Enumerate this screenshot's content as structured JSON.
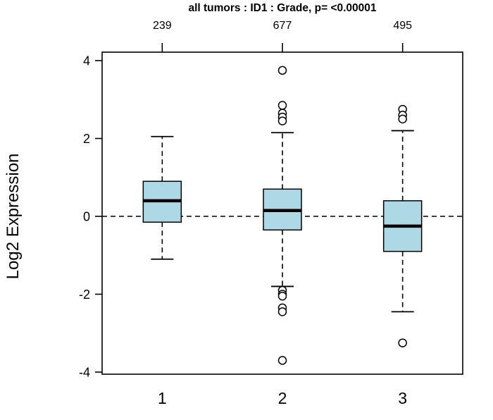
{
  "colors": {
    "box_fill": "#ADD8E6",
    "stroke": "#000000",
    "background": "#FFFFFF"
  },
  "chart_data": {
    "type": "boxplot",
    "title": "all tumors : ID1 : Grade, p= <0.00001",
    "xlabel": "",
    "ylabel": "Log2 Expression",
    "ylim": [
      -4,
      4
    ],
    "yticks": [
      -4,
      -2,
      0,
      2,
      4
    ],
    "grid": false,
    "reference_line_y": 0,
    "reference_line_style": "dashed",
    "categories": [
      "1",
      "2",
      "3"
    ],
    "counts": [
      239,
      677,
      495
    ],
    "series": [
      {
        "category": "1",
        "n": "239",
        "whisker_low": -1.1,
        "q1": -0.15,
        "median": 0.4,
        "q3": 0.9,
        "whisker_high": 2.05,
        "outliers": []
      },
      {
        "category": "2",
        "n": "677",
        "whisker_low": -1.8,
        "q1": -0.35,
        "median": 0.15,
        "q3": 0.7,
        "whisker_high": 2.15,
        "outliers": [
          3.75,
          2.85,
          2.65,
          2.55,
          2.45,
          -1.9,
          -2.0,
          -2.05,
          -2.35,
          -2.45,
          -3.7
        ]
      },
      {
        "category": "3",
        "n": "495",
        "whisker_low": -2.45,
        "q1": -0.9,
        "median": -0.25,
        "q3": 0.4,
        "whisker_high": 2.2,
        "outliers": [
          2.75,
          2.6,
          2.5,
          -3.25
        ]
      }
    ]
  }
}
